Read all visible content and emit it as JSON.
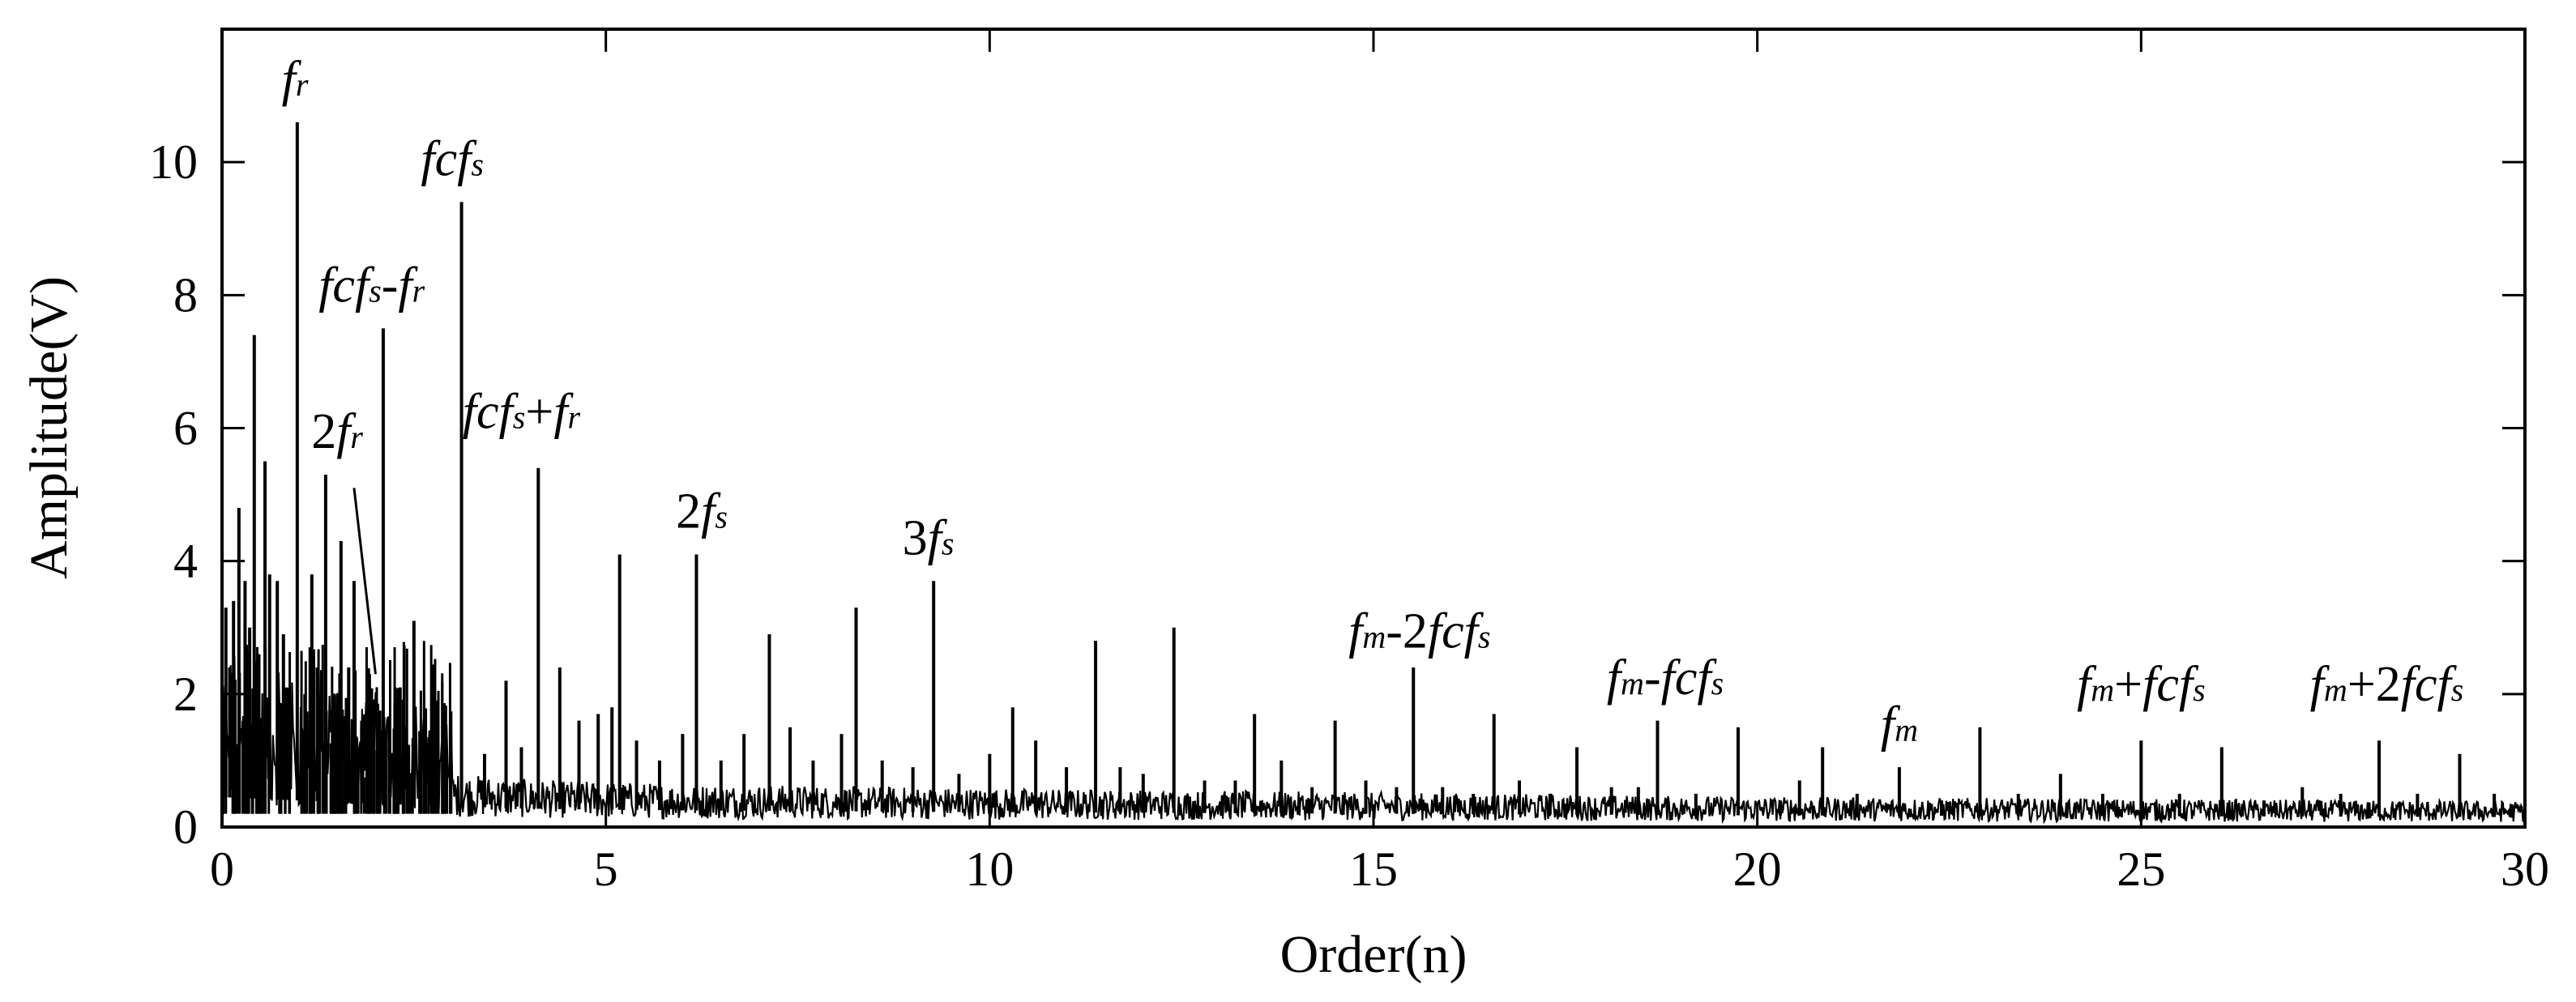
{
  "chart_data": {
    "type": "line",
    "xlabel": "Order(n)",
    "ylabel": "Amplitude(V)",
    "xlim": [
      0,
      30
    ],
    "ylim": [
      0,
      12
    ],
    "xticks": [
      "0",
      "5",
      "10",
      "15",
      "20",
      "25",
      "30"
    ],
    "yticks": [
      "0",
      "2",
      "4",
      "6",
      "8",
      "10"
    ],
    "grid": false,
    "legend": "none",
    "peaks": [
      {
        "x": 0.05,
        "y": 3.3
      },
      {
        "x": 0.1,
        "y": 2.4
      },
      {
        "x": 0.15,
        "y": 3.4
      },
      {
        "x": 0.22,
        "y": 4.8
      },
      {
        "x": 0.3,
        "y": 3.7
      },
      {
        "x": 0.36,
        "y": 3.0
      },
      {
        "x": 0.42,
        "y": 7.4
      },
      {
        "x": 0.48,
        "y": 2.6
      },
      {
        "x": 0.56,
        "y": 5.5
      },
      {
        "x": 0.62,
        "y": 3.8
      },
      {
        "x": 0.72,
        "y": 3.7
      },
      {
        "x": 0.8,
        "y": 2.9
      },
      {
        "x": 0.84,
        "y": 2.1
      },
      {
        "x": 0.98,
        "y": 10.6
      },
      {
        "x": 1.08,
        "y": 2.0
      },
      {
        "x": 1.17,
        "y": 3.8
      },
      {
        "x": 1.24,
        "y": 2.4
      },
      {
        "x": 1.35,
        "y": 5.3
      },
      {
        "x": 1.45,
        "y": 2.0
      },
      {
        "x": 1.55,
        "y": 4.3
      },
      {
        "x": 1.65,
        "y": 2.4
      },
      {
        "x": 1.72,
        "y": 3.7
      },
      {
        "x": 1.82,
        "y": 1.6
      },
      {
        "x": 1.92,
        "y": 2.3
      },
      {
        "x": 2.1,
        "y": 7.5
      },
      {
        "x": 2.32,
        "y": 2.1
      },
      {
        "x": 2.5,
        "y": 3.1
      },
      {
        "x": 2.7,
        "y": 1.3
      },
      {
        "x": 2.9,
        "y": 1.2
      },
      {
        "x": 3.12,
        "y": 9.4
      },
      {
        "x": 3.42,
        "y": 1.1
      },
      {
        "x": 3.7,
        "y": 2.2
      },
      {
        "x": 3.9,
        "y": 1.2
      },
      {
        "x": 4.12,
        "y": 5.4
      },
      {
        "x": 4.4,
        "y": 2.4
      },
      {
        "x": 4.65,
        "y": 1.6
      },
      {
        "x": 4.9,
        "y": 1.7
      },
      {
        "x": 5.08,
        "y": 1.8
      },
      {
        "x": 5.18,
        "y": 4.1
      },
      {
        "x": 5.4,
        "y": 1.3
      },
      {
        "x": 5.7,
        "y": 1.0
      },
      {
        "x": 6.0,
        "y": 1.4
      },
      {
        "x": 6.18,
        "y": 4.1
      },
      {
        "x": 6.5,
        "y": 1.0
      },
      {
        "x": 6.8,
        "y": 1.4
      },
      {
        "x": 7.13,
        "y": 2.9
      },
      {
        "x": 7.4,
        "y": 1.5
      },
      {
        "x": 7.7,
        "y": 1.0
      },
      {
        "x": 8.07,
        "y": 1.4
      },
      {
        "x": 8.26,
        "y": 3.3
      },
      {
        "x": 8.6,
        "y": 1.0
      },
      {
        "x": 9.0,
        "y": 0.9
      },
      {
        "x": 9.27,
        "y": 3.7
      },
      {
        "x": 9.6,
        "y": 0.8
      },
      {
        "x": 10.0,
        "y": 1.1
      },
      {
        "x": 10.3,
        "y": 1.8
      },
      {
        "x": 10.6,
        "y": 1.3
      },
      {
        "x": 11.0,
        "y": 0.9
      },
      {
        "x": 11.38,
        "y": 2.8
      },
      {
        "x": 11.7,
        "y": 0.9
      },
      {
        "x": 12.0,
        "y": 0.8
      },
      {
        "x": 12.4,
        "y": 3.0
      },
      {
        "x": 12.8,
        "y": 0.7
      },
      {
        "x": 13.2,
        "y": 0.7
      },
      {
        "x": 13.45,
        "y": 1.7
      },
      {
        "x": 13.8,
        "y": 1.0
      },
      {
        "x": 14.2,
        "y": 0.6
      },
      {
        "x": 14.5,
        "y": 1.6
      },
      {
        "x": 14.9,
        "y": 0.7
      },
      {
        "x": 15.3,
        "y": 0.6
      },
      {
        "x": 15.52,
        "y": 2.4
      },
      {
        "x": 15.9,
        "y": 0.6
      },
      {
        "x": 16.3,
        "y": 0.5
      },
      {
        "x": 16.57,
        "y": 1.7
      },
      {
        "x": 16.9,
        "y": 0.7
      },
      {
        "x": 17.3,
        "y": 0.5
      },
      {
        "x": 17.65,
        "y": 1.2
      },
      {
        "x": 18.1,
        "y": 0.6
      },
      {
        "x": 18.45,
        "y": 0.6
      },
      {
        "x": 18.7,
        "y": 1.6
      },
      {
        "x": 19.2,
        "y": 0.5
      },
      {
        "x": 19.75,
        "y": 1.5
      },
      {
        "x": 20.3,
        "y": 0.4
      },
      {
        "x": 20.55,
        "y": 0.7
      },
      {
        "x": 20.85,
        "y": 1.2
      },
      {
        "x": 21.3,
        "y": 0.5
      },
      {
        "x": 21.85,
        "y": 0.9
      },
      {
        "x": 22.4,
        "y": 0.4
      },
      {
        "x": 22.9,
        "y": 1.5
      },
      {
        "x": 23.4,
        "y": 0.5
      },
      {
        "x": 23.95,
        "y": 0.8
      },
      {
        "x": 24.5,
        "y": 0.5
      },
      {
        "x": 25.0,
        "y": 1.3
      },
      {
        "x": 25.5,
        "y": 0.5
      },
      {
        "x": 26.05,
        "y": 1.2
      },
      {
        "x": 26.6,
        "y": 0.4
      },
      {
        "x": 27.1,
        "y": 0.6
      },
      {
        "x": 27.6,
        "y": 0.5
      },
      {
        "x": 28.1,
        "y": 1.3
      },
      {
        "x": 28.6,
        "y": 0.5
      },
      {
        "x": 29.15,
        "y": 1.1
      },
      {
        "x": 29.6,
        "y": 0.5
      }
    ],
    "noise_floor": [
      {
        "x": 0,
        "y": 0.9
      },
      {
        "x": 1,
        "y": 0.8
      },
      {
        "x": 2,
        "y": 0.7
      },
      {
        "x": 4,
        "y": 0.55
      },
      {
        "x": 6,
        "y": 0.5
      },
      {
        "x": 10,
        "y": 0.45
      },
      {
        "x": 15,
        "y": 0.4
      },
      {
        "x": 20,
        "y": 0.35
      },
      {
        "x": 30,
        "y": 0.3
      }
    ],
    "annotations": [
      {
        "parts": [
          {
            "t": "f",
            "it": true
          },
          {
            "t": "r",
            "sub": true
          }
        ],
        "x": 0.95,
        "y": 11.0
      },
      {
        "parts": [
          {
            "t": "fcf",
            "it": true
          },
          {
            "t": "s",
            "sub": true
          }
        ],
        "x": 3.0,
        "y": 9.8
      },
      {
        "parts": [
          {
            "t": "fcf",
            "it": true
          },
          {
            "t": "s",
            "sub": true
          },
          {
            "t": "-",
            "it": false
          },
          {
            "t": "f",
            "it": true
          },
          {
            "t": "r",
            "sub": true
          }
        ],
        "x": 1.95,
        "y": 7.9
      },
      {
        "parts": [
          {
            "t": "fcf",
            "it": true
          },
          {
            "t": "s",
            "sub": true
          },
          {
            "t": "+",
            "it": false
          },
          {
            "t": "f",
            "it": true
          },
          {
            "t": "r",
            "sub": true
          }
        ],
        "x": 3.9,
        "y": 6.0
      },
      {
        "parts": [
          {
            "t": "2",
            "it": false
          },
          {
            "t": "f",
            "it": true
          },
          {
            "t": "r",
            "sub": true
          }
        ],
        "x": 1.5,
        "y": 5.7
      },
      {
        "parts": [
          {
            "t": "2",
            "it": false
          },
          {
            "t": "f",
            "it": true
          },
          {
            "t": "s",
            "sub": true
          }
        ],
        "x": 6.25,
        "y": 4.5
      },
      {
        "parts": [
          {
            "t": "3",
            "it": false
          },
          {
            "t": "f",
            "it": true
          },
          {
            "t": "s",
            "sub": true
          }
        ],
        "x": 9.2,
        "y": 4.1
      },
      {
        "parts": [
          {
            "t": "f",
            "it": true
          },
          {
            "t": "m",
            "sub": true
          },
          {
            "t": "-2",
            "it": false
          },
          {
            "t": "fcf",
            "it": true
          },
          {
            "t": "s",
            "sub": true
          }
        ],
        "x": 15.6,
        "y": 2.7
      },
      {
        "parts": [
          {
            "t": "f",
            "it": true
          },
          {
            "t": "m",
            "sub": true
          },
          {
            "t": "-",
            "it": false
          },
          {
            "t": "fcf",
            "it": true
          },
          {
            "t": "s",
            "sub": true
          }
        ],
        "x": 18.8,
        "y": 2.0
      },
      {
        "parts": [
          {
            "t": "f",
            "it": true
          },
          {
            "t": "m",
            "sub": true
          }
        ],
        "x": 21.85,
        "y": 1.3
      },
      {
        "parts": [
          {
            "t": "f",
            "it": true
          },
          {
            "t": "m",
            "sub": true
          },
          {
            "t": "+",
            "it": false
          },
          {
            "t": "fcf",
            "it": true
          },
          {
            "t": "s",
            "sub": true
          }
        ],
        "x": 25.0,
        "y": 1.9
      },
      {
        "parts": [
          {
            "t": "f",
            "it": true
          },
          {
            "t": "m",
            "sub": true
          },
          {
            "t": "+2",
            "it": false
          },
          {
            "t": "fcf",
            "it": true
          },
          {
            "t": "s",
            "sub": true
          }
        ],
        "x": 28.2,
        "y": 1.9
      }
    ],
    "leader_lines": [
      {
        "from": {
          "x": 1.72,
          "y": 5.1
        },
        "to": {
          "x": 2.0,
          "y": 2.3
        }
      }
    ]
  }
}
